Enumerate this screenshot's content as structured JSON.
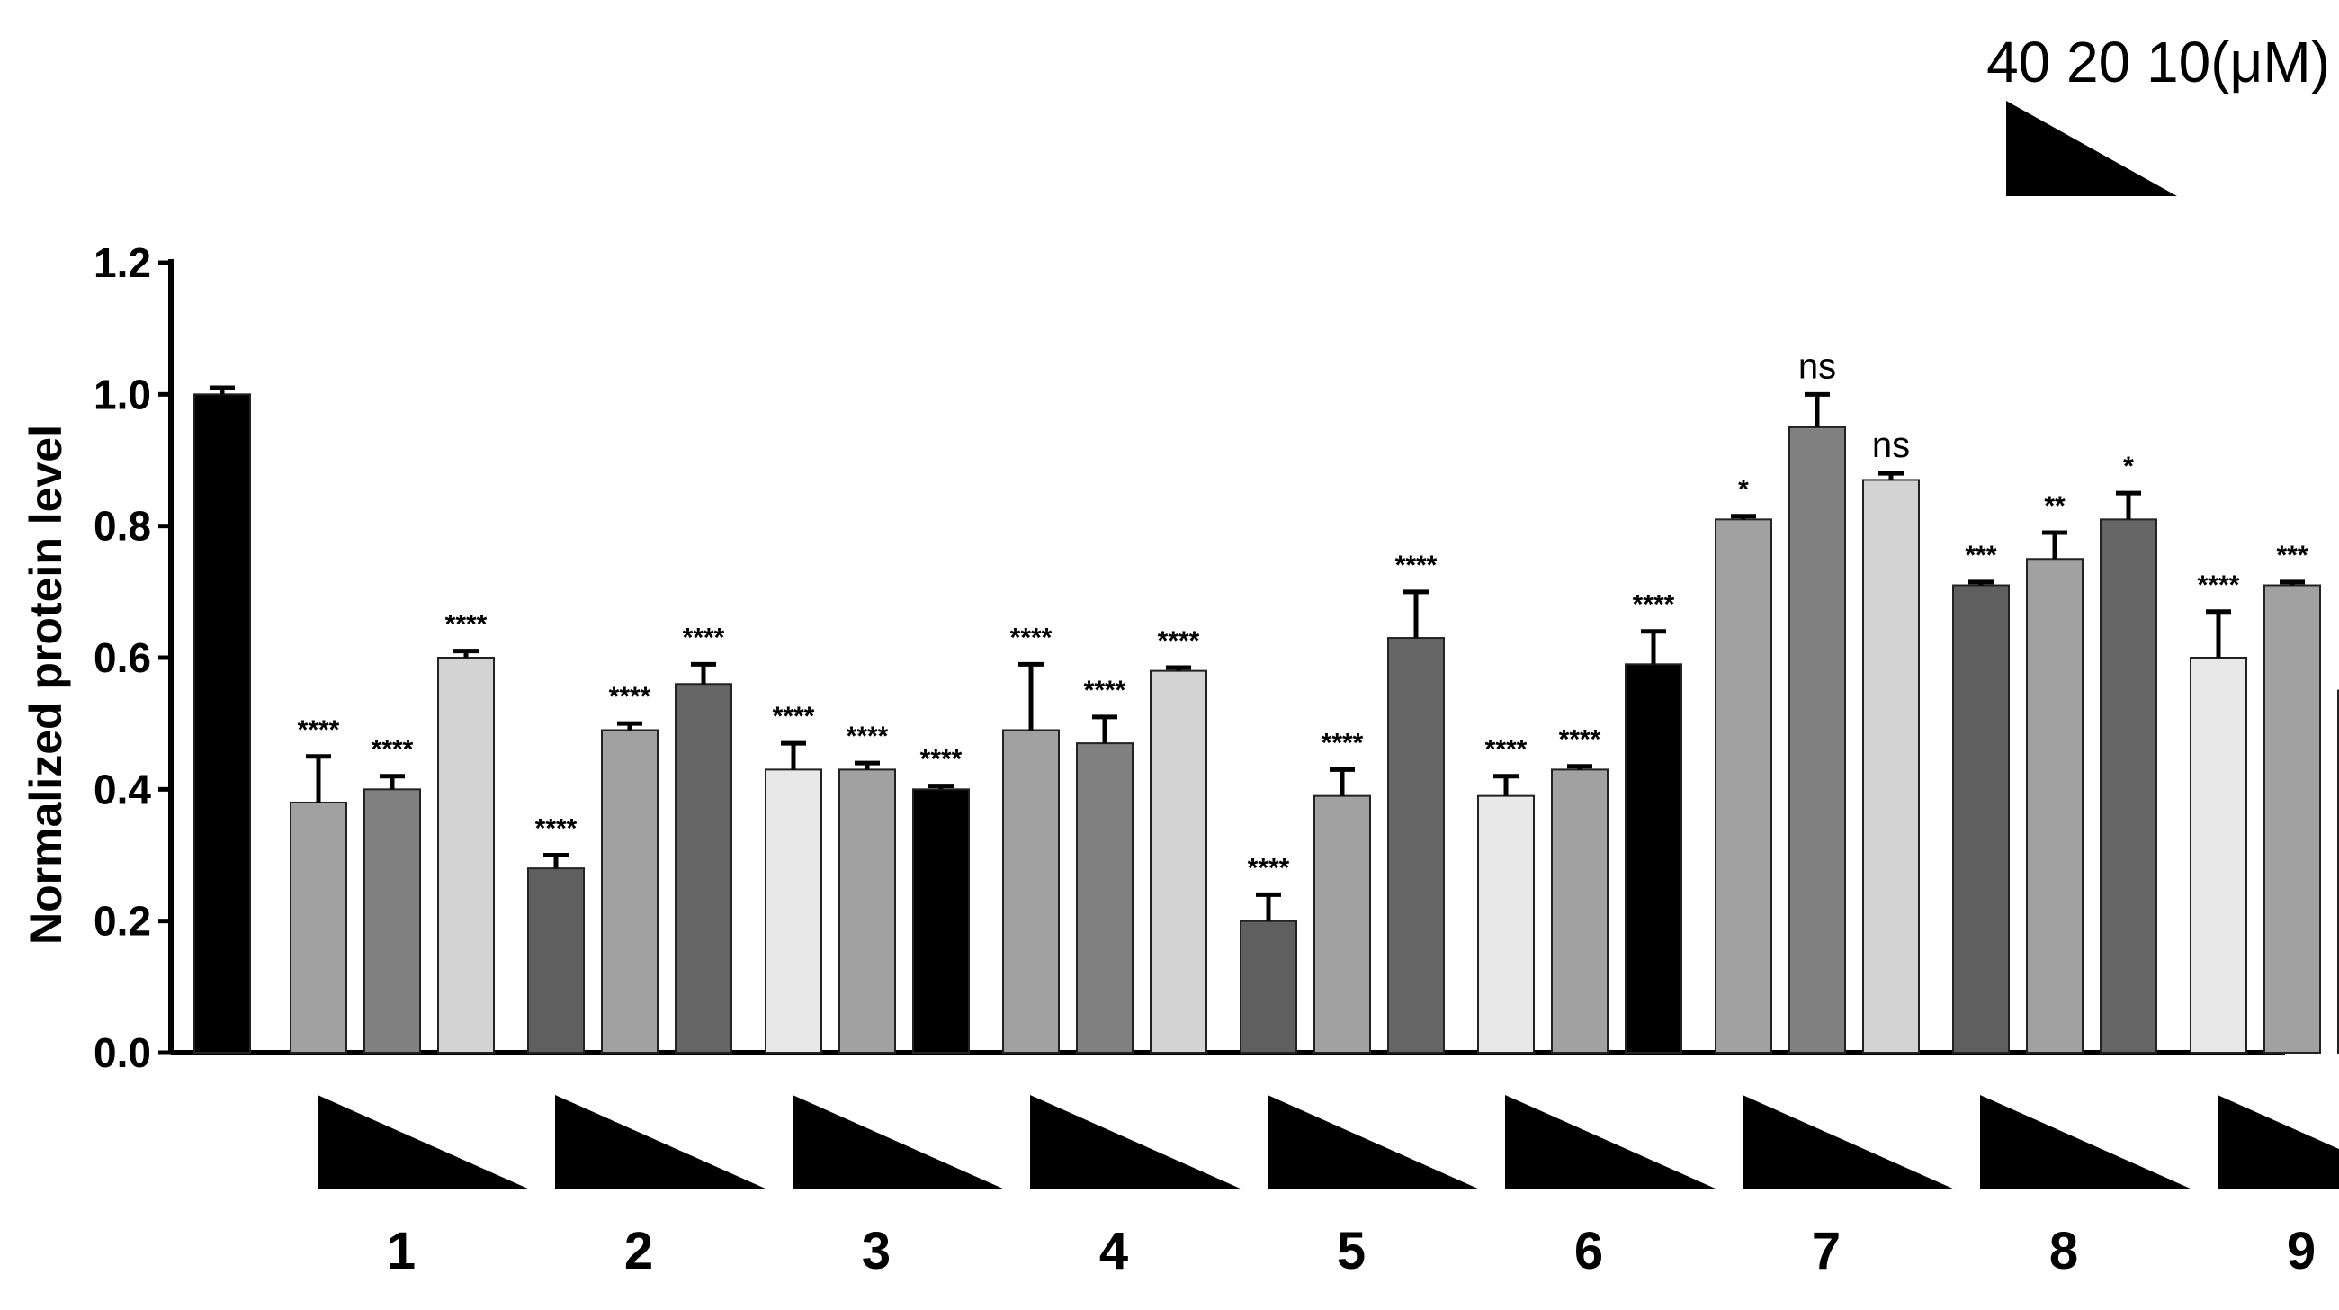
{
  "chart_data": {
    "type": "bar",
    "ylabel": "Normalized protein level",
    "ylim": [
      0,
      1.2
    ],
    "yticks": [
      "0.0",
      "0.2",
      "0.4",
      "0.6",
      "0.8",
      "1.0",
      "1.2"
    ],
    "ytick_values": [
      0,
      0.2,
      0.4,
      0.6,
      0.8,
      1.0,
      1.2
    ],
    "concentration_legend": "40 20 10(μM)",
    "categories": [
      "1",
      "2",
      "3",
      "4",
      "5",
      "6",
      "7",
      "8",
      "9"
    ],
    "control": {
      "value": 1.0,
      "error": 0.01,
      "color": "#000000"
    },
    "groups": [
      {
        "label": "1",
        "values": [
          0.38,
          0.4,
          0.6
        ],
        "errors": [
          0.07,
          0.02,
          0.01
        ],
        "sig": [
          "****",
          "****",
          "****"
        ],
        "colors": [
          "#a1a1a1",
          "#808080",
          "#d3d3d3"
        ]
      },
      {
        "label": "2",
        "values": [
          0.28,
          0.49,
          0.56
        ],
        "errors": [
          0.02,
          0.01,
          0.03
        ],
        "sig": [
          "****",
          "****",
          "****"
        ],
        "colors": [
          "#5f5f5f",
          "#a1a1a1",
          "#666666"
        ]
      },
      {
        "label": "3",
        "values": [
          0.43,
          0.43,
          0.4
        ],
        "errors": [
          0.04,
          0.01,
          0.005
        ],
        "sig": [
          "****",
          "****",
          "****"
        ],
        "colors": [
          "#e8e8e8",
          "#a1a1a1",
          "#000000"
        ]
      },
      {
        "label": "4",
        "values": [
          0.49,
          0.47,
          0.58
        ],
        "errors": [
          0.1,
          0.04,
          0.005
        ],
        "sig": [
          "****",
          "****",
          "****"
        ],
        "colors": [
          "#a1a1a1",
          "#808080",
          "#d3d3d3"
        ]
      },
      {
        "label": "5",
        "values": [
          0.2,
          0.39,
          0.63
        ],
        "errors": [
          0.04,
          0.04,
          0.07
        ],
        "sig": [
          "****",
          "****",
          "****"
        ],
        "colors": [
          "#5f5f5f",
          "#a1a1a1",
          "#666666"
        ]
      },
      {
        "label": "6",
        "values": [
          0.39,
          0.43,
          0.59
        ],
        "errors": [
          0.03,
          0.005,
          0.05
        ],
        "sig": [
          "****",
          "****",
          "****"
        ],
        "colors": [
          "#e8e8e8",
          "#a1a1a1",
          "#000000"
        ]
      },
      {
        "label": "7",
        "values": [
          0.81,
          0.95,
          0.87
        ],
        "errors": [
          0.005,
          0.05,
          0.01
        ],
        "sig": [
          "*",
          "ns",
          "ns"
        ],
        "colors": [
          "#a1a1a1",
          "#808080",
          "#d3d3d3"
        ]
      },
      {
        "label": "8",
        "values": [
          0.71,
          0.75,
          0.81
        ],
        "errors": [
          0.005,
          0.04,
          0.04
        ],
        "sig": [
          "***",
          "**",
          "*"
        ],
        "colors": [
          "#5f5f5f",
          "#a1a1a1",
          "#666666"
        ]
      },
      {
        "label": "9",
        "values": [
          0.6,
          0.71,
          0.55
        ],
        "errors": [
          0.07,
          0.005,
          0.04
        ],
        "sig": [
          "****",
          "***",
          "****"
        ],
        "colors": [
          "#e8e8e8",
          "#a1a1a1",
          "#000000"
        ]
      }
    ]
  }
}
